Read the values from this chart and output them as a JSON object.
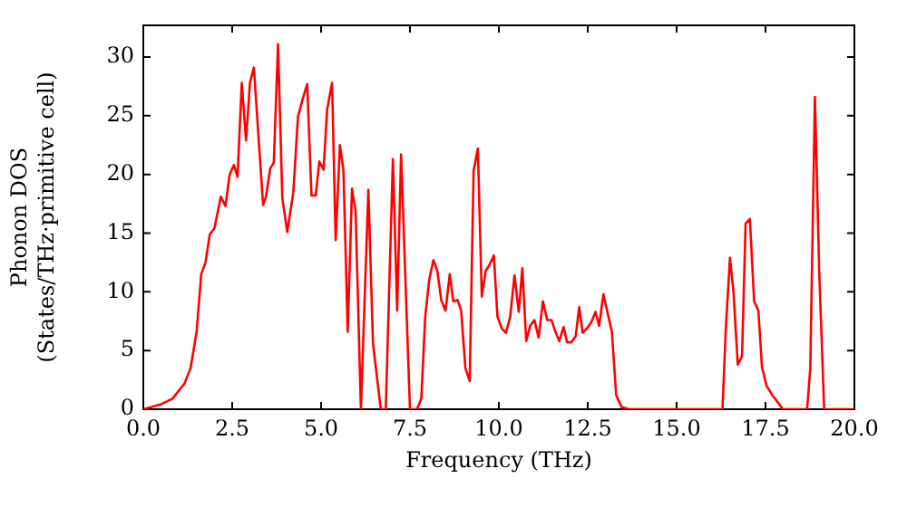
{
  "chart_data": {
    "type": "line",
    "xlabel": "Frequency (THz)",
    "ylabel": "Phonon DOS\n(States/THz·primitive cell)",
    "xlim": [
      0,
      20
    ],
    "ylim": [
      0,
      32.7
    ],
    "xticks": [
      {
        "value": 0,
        "label": "0.0"
      },
      {
        "value": 2.5,
        "label": "2.5"
      },
      {
        "value": 5,
        "label": "5.0"
      },
      {
        "value": 7.5,
        "label": "7.5"
      },
      {
        "value": 10,
        "label": "10.0"
      },
      {
        "value": 12.5,
        "label": "12.5"
      },
      {
        "value": 15,
        "label": "15.0"
      },
      {
        "value": 17.5,
        "label": "17.5"
      },
      {
        "value": 20,
        "label": "20.0"
      }
    ],
    "yticks": [
      0,
      5,
      10,
      15,
      20,
      25,
      30
    ],
    "grid": false,
    "legend": false,
    "marker": "none",
    "line_style": "solid",
    "series": [
      {
        "color": "#ff0000",
        "x": [
          0,
          0.48,
          0.82,
          1.16,
          1.33,
          1.5,
          1.63,
          1.75,
          1.87,
          2.0,
          2.18,
          2.31,
          2.43,
          2.55,
          2.65,
          2.77,
          2.89,
          3.0,
          3.11,
          3.37,
          3.45,
          3.57,
          3.67,
          3.79,
          3.91,
          4.05,
          4.22,
          4.35,
          4.49,
          4.61,
          4.73,
          4.85,
          4.95,
          5.07,
          5.17,
          5.31,
          5.41,
          5.53,
          5.63,
          5.75,
          5.87,
          5.97,
          6.12,
          6.33,
          6.46,
          6.68,
          6.82,
          7.02,
          7.14,
          7.25,
          7.5,
          7.7,
          7.82,
          7.93,
          8.04,
          8.16,
          8.27,
          8.38,
          8.5,
          8.62,
          8.72,
          8.84,
          8.94,
          9.06,
          9.18,
          9.29,
          9.41,
          9.52,
          9.63,
          9.74,
          9.86,
          9.96,
          10.08,
          10.2,
          10.32,
          10.44,
          10.56,
          10.66,
          10.77,
          10.88,
          11.0,
          11.12,
          11.24,
          11.36,
          11.48,
          11.58,
          11.7,
          11.82,
          11.92,
          12.04,
          12.16,
          12.26,
          12.36,
          12.48,
          12.6,
          12.72,
          12.82,
          12.94,
          13.06,
          13.18,
          13.3,
          13.45,
          13.66,
          16.29,
          16.38,
          16.5,
          16.6,
          16.72,
          16.84,
          16.94,
          17.06,
          17.18,
          17.3,
          17.4,
          17.53,
          17.69,
          17.82,
          17.99,
          18.67,
          18.76,
          18.89,
          19.01,
          19.15,
          20
        ],
        "values": [
          0,
          0.4,
          0.9,
          2.2,
          3.5,
          6.6,
          11.5,
          12.5,
          14.9,
          15.4,
          18.1,
          17.3,
          20,
          20.8,
          19.8,
          27.8,
          22.9,
          27.8,
          29.1,
          17.4,
          18.1,
          20.5,
          21,
          31.1,
          18,
          15.1,
          18.5,
          24.9,
          26.5,
          27.7,
          18.2,
          18.2,
          21.1,
          20.4,
          25.5,
          27.8,
          14.4,
          22.5,
          20.3,
          6.6,
          18.8,
          16.9,
          0,
          18.7,
          5.6,
          0,
          0,
          21.3,
          8.4,
          21.7,
          0,
          0,
          0.9,
          7.9,
          11,
          12.7,
          11.8,
          9.3,
          8.4,
          11.5,
          9.2,
          9.3,
          8.4,
          3.5,
          2.4,
          20.3,
          22.2,
          9.6,
          11.8,
          12.3,
          13.1,
          7.9,
          6.9,
          6.5,
          7.9,
          11.4,
          8.3,
          12,
          5.8,
          7.1,
          7.6,
          6.1,
          9.2,
          7.6,
          7.6,
          6.7,
          5.8,
          7,
          5.7,
          5.7,
          6.2,
          8.7,
          6.5,
          6.9,
          7.4,
          8.3,
          7.1,
          9.8,
          8.2,
          6.6,
          1.2,
          0.2,
          0,
          0,
          6.6,
          12.9,
          10,
          3.8,
          4.5,
          15.8,
          16.2,
          9.2,
          8.4,
          3.6,
          2,
          1.2,
          0.7,
          0,
          0,
          3.5,
          26.6,
          11.8,
          0,
          0
        ]
      }
    ]
  }
}
